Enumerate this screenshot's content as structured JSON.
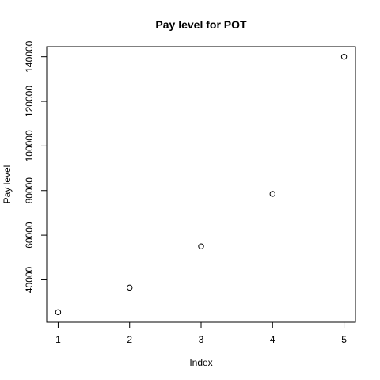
{
  "chart_data": {
    "type": "scatter",
    "title": "Pay level for  POT",
    "xlabel": "Index",
    "ylabel": "Pay level",
    "x": [
      1,
      2,
      3,
      4,
      5
    ],
    "y": [
      25500,
      36500,
      55000,
      78500,
      140000
    ],
    "xlim": [
      0.84,
      5.16
    ],
    "ylim": [
      21000,
      144500
    ],
    "xticks": [
      1,
      2,
      3,
      4,
      5
    ],
    "yticks": [
      40000,
      60000,
      80000,
      100000,
      120000,
      140000
    ],
    "grid": false,
    "marker": "open-circle"
  }
}
